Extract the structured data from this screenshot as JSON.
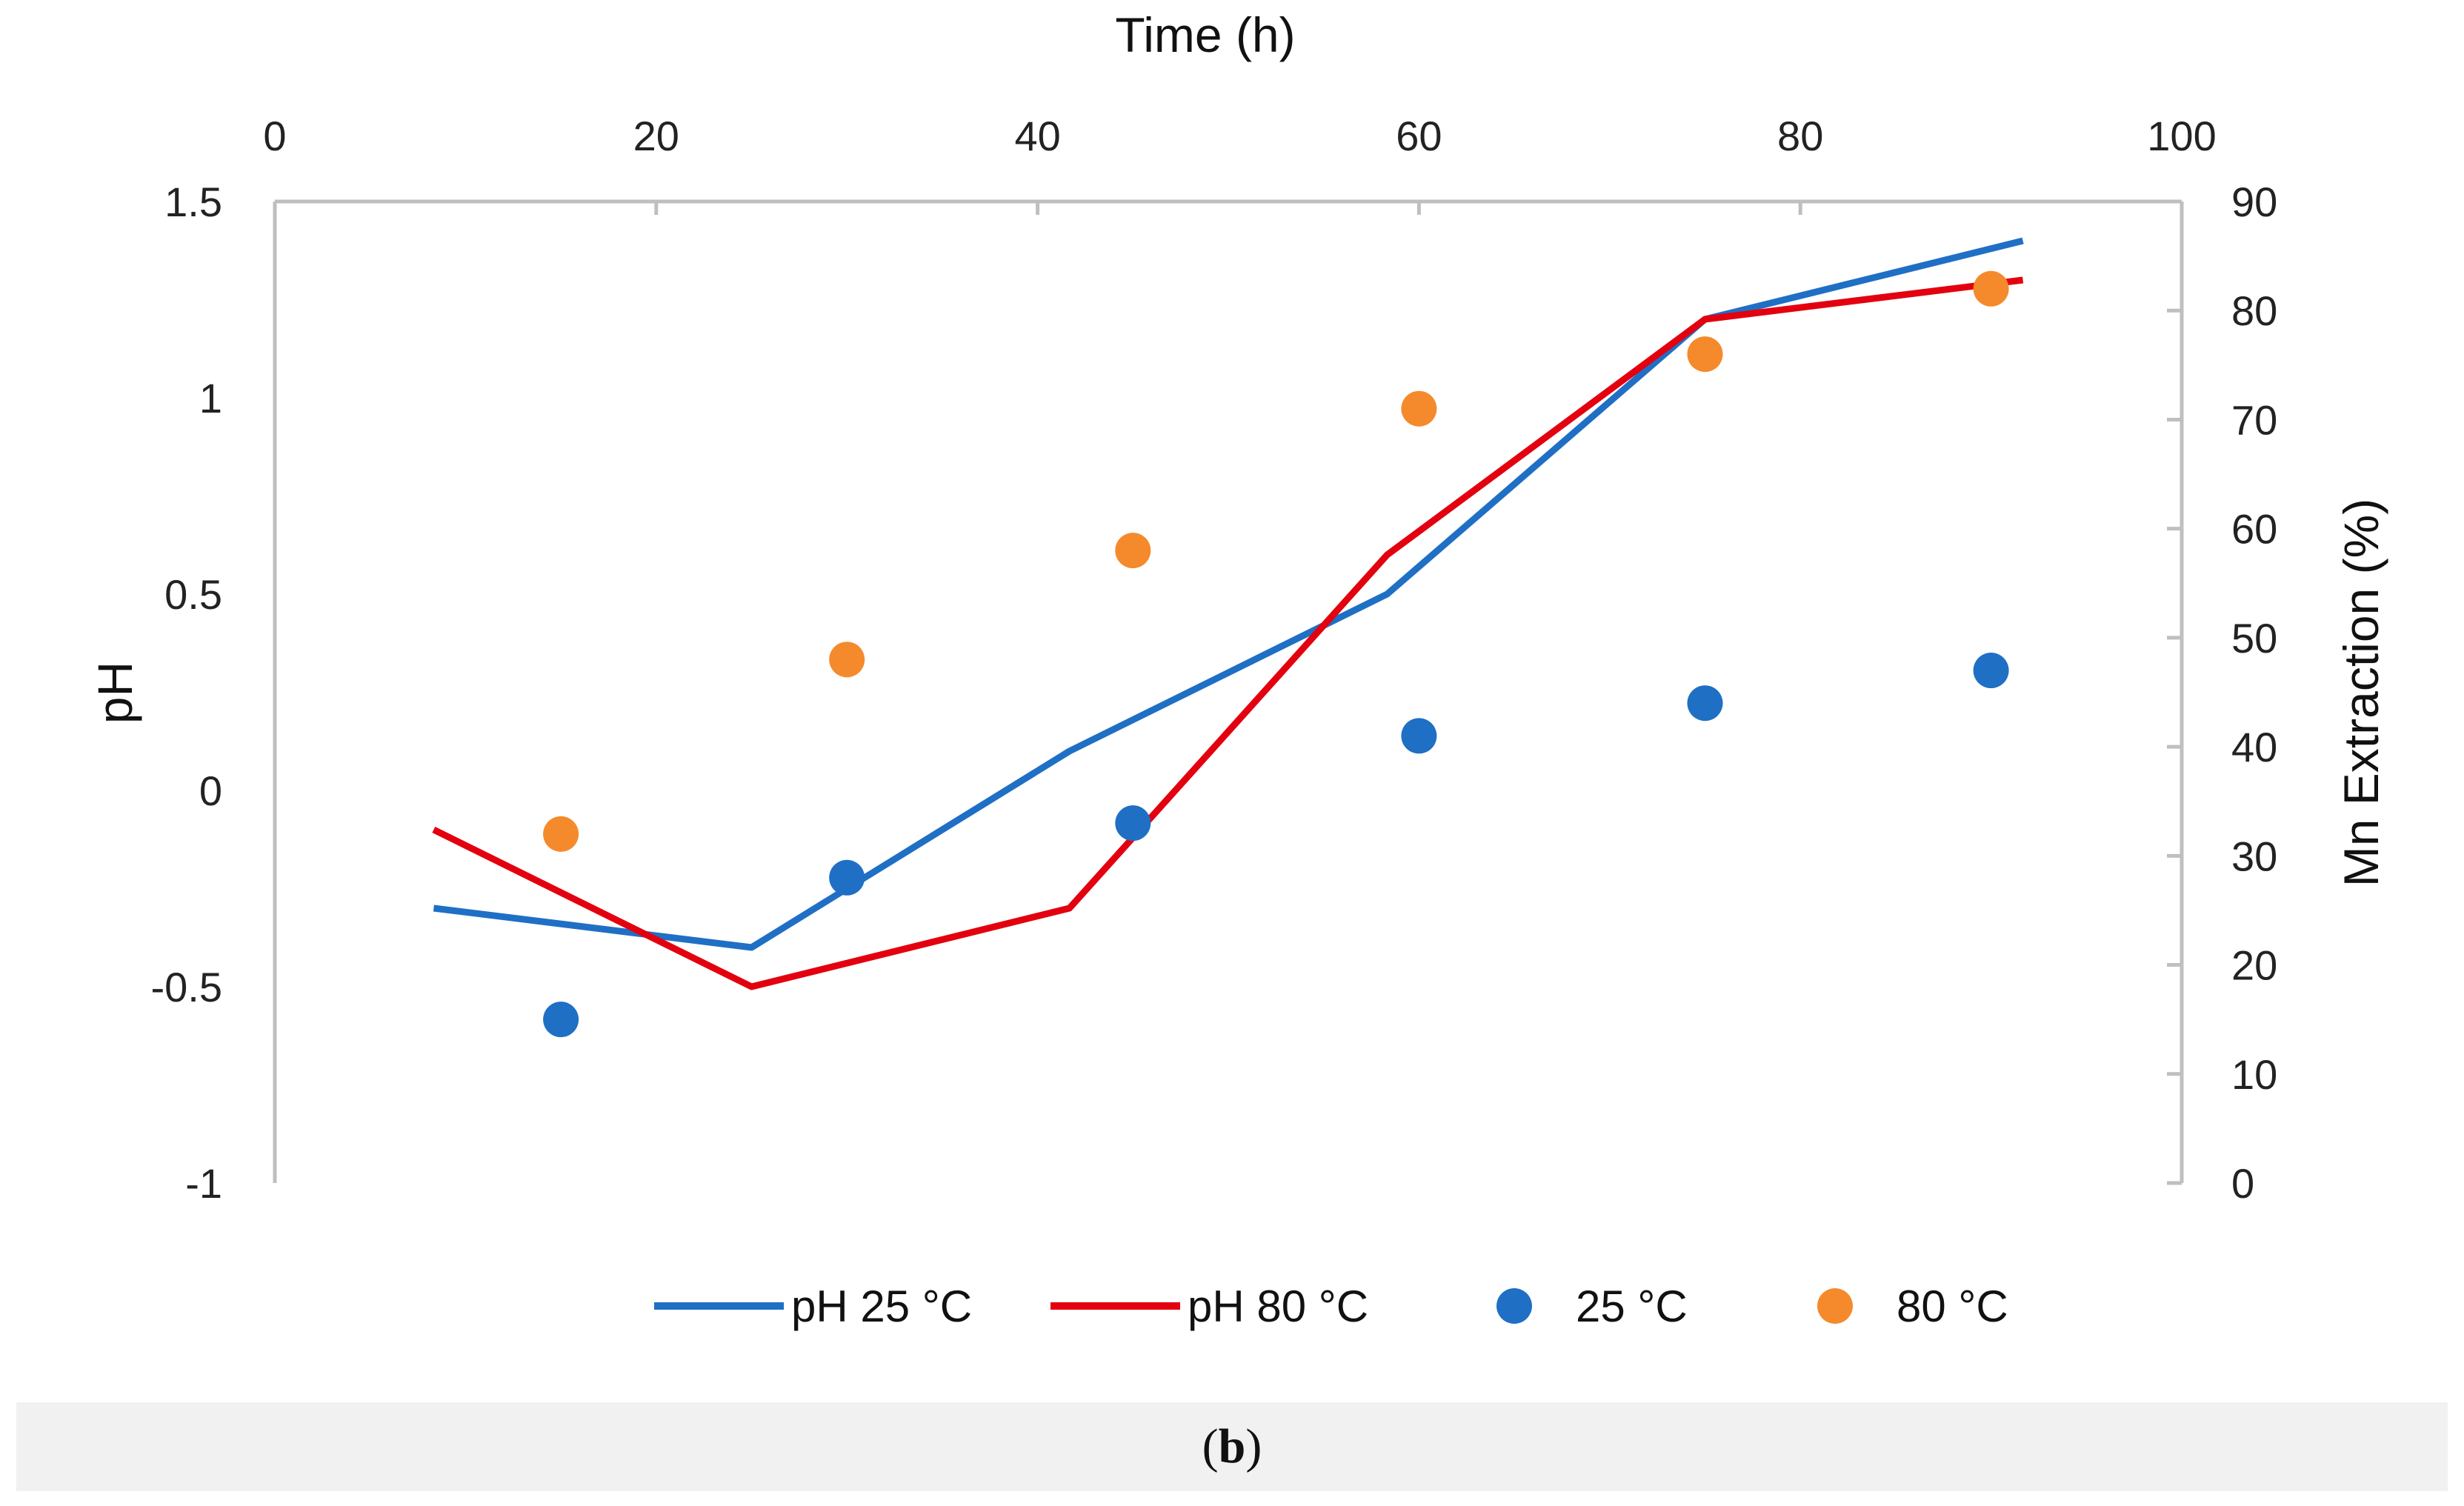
{
  "chart_data": {
    "type": "line",
    "title": "",
    "xlabel": "Time (h)",
    "ylabel": "pH",
    "y2label": "Mn Extraction (%)",
    "xlim": [
      0,
      100
    ],
    "ylim": [
      -1,
      1.5
    ],
    "y2lim": [
      0,
      90
    ],
    "x_ticks": [
      "0",
      "20",
      "40",
      "60",
      "80",
      "100"
    ],
    "y_ticks": [
      "-1",
      "-0.5",
      "0",
      "0.5",
      "1",
      "1.5"
    ],
    "y2_ticks": [
      "0",
      "10",
      "20",
      "30",
      "40",
      "50",
      "60",
      "70",
      "80",
      "90"
    ],
    "series": [
      {
        "name": "pH 25 °C",
        "kind": "line",
        "axis": "left",
        "color": "#1f6fc5",
        "x": [
          8.33,
          25,
          41.67,
          58.33,
          75,
          91.67
        ],
        "values": [
          -0.3,
          -0.4,
          0.1,
          0.5,
          1.2,
          1.4
        ]
      },
      {
        "name": "pH 80 °C",
        "kind": "line",
        "axis": "left",
        "color": "#e3000f",
        "x": [
          8.33,
          25,
          41.67,
          58.33,
          75,
          91.67
        ],
        "values": [
          -0.1,
          -0.5,
          -0.3,
          0.6,
          1.2,
          1.3
        ]
      },
      {
        "name": "25 °C",
        "kind": "scatter",
        "axis": "right",
        "color": "#1f6fc5",
        "x": [
          15,
          30,
          45,
          60,
          75,
          90
        ],
        "values": [
          15,
          28,
          33,
          41,
          44,
          47
        ]
      },
      {
        "name": "80 °C",
        "kind": "scatter",
        "axis": "right",
        "color": "#f58a2c",
        "x": [
          15,
          30,
          45,
          60,
          75,
          90
        ],
        "values": [
          32,
          48,
          58,
          71,
          76,
          82
        ]
      }
    ],
    "legend_position": "bottom"
  },
  "caption": {
    "open": "(",
    "letter": "b",
    "close": ")"
  },
  "colors": {
    "axis": "#bfbfbf",
    "caption_bg": "#f1f1f1"
  }
}
